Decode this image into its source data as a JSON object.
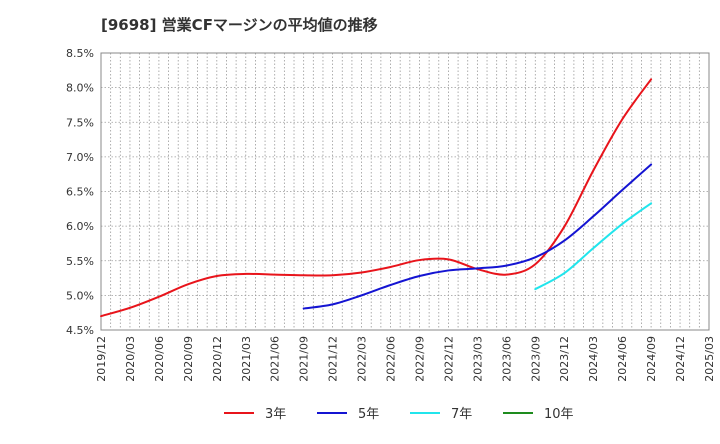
{
  "chart_data": {
    "type": "line",
    "title": "[9698]  営業CFマージンの平均値の推移",
    "xlabel": "",
    "ylabel": "",
    "x_ticks": [
      "2019/12",
      "2020/03",
      "2020/06",
      "2020/09",
      "2020/12",
      "2021/03",
      "2021/06",
      "2021/09",
      "2021/12",
      "2022/03",
      "2022/06",
      "2022/09",
      "2022/12",
      "2023/03",
      "2023/06",
      "2023/09",
      "2023/12",
      "2024/03",
      "2024/06",
      "2024/09",
      "2024/12",
      "2025/03"
    ],
    "y_ticks": [
      "4.5%",
      "5.0%",
      "5.5%",
      "6.0%",
      "6.5%",
      "7.0%",
      "7.5%",
      "8.0%",
      "8.5%"
    ],
    "ylim": [
      4.5,
      8.5
    ],
    "grid": true,
    "legend_position": "bottom",
    "series": [
      {
        "name": "3年",
        "color": "#e8141b",
        "x": [
          "2019/12",
          "2020/03",
          "2020/06",
          "2020/09",
          "2020/12",
          "2021/03",
          "2021/06",
          "2021/09",
          "2021/12",
          "2022/03",
          "2022/06",
          "2022/09",
          "2022/12",
          "2023/03",
          "2023/06",
          "2023/09",
          "2023/12",
          "2024/03",
          "2024/06",
          "2024/09"
        ],
        "values": [
          4.7,
          4.82,
          4.98,
          5.16,
          5.28,
          5.31,
          5.3,
          5.29,
          5.29,
          5.33,
          5.41,
          5.51,
          5.52,
          5.38,
          5.3,
          5.45,
          5.99,
          6.8,
          7.54,
          8.12
        ]
      },
      {
        "name": "5年",
        "color": "#1414d2",
        "x": [
          "2021/09",
          "2021/12",
          "2022/03",
          "2022/06",
          "2022/09",
          "2022/12",
          "2023/03",
          "2023/06",
          "2023/09",
          "2023/12",
          "2024/03",
          "2024/06",
          "2024/09"
        ],
        "values": [
          4.81,
          4.87,
          5.0,
          5.15,
          5.28,
          5.36,
          5.39,
          5.43,
          5.55,
          5.79,
          6.14,
          6.52,
          6.89
        ]
      },
      {
        "name": "7年",
        "color": "#21e5ec",
        "x": [
          "2023/09",
          "2023/12",
          "2024/03",
          "2024/06",
          "2024/09"
        ],
        "values": [
          5.09,
          5.32,
          5.68,
          6.03,
          6.33
        ]
      },
      {
        "name": "10年",
        "color": "#1e8c1e",
        "x": [],
        "values": []
      }
    ]
  }
}
